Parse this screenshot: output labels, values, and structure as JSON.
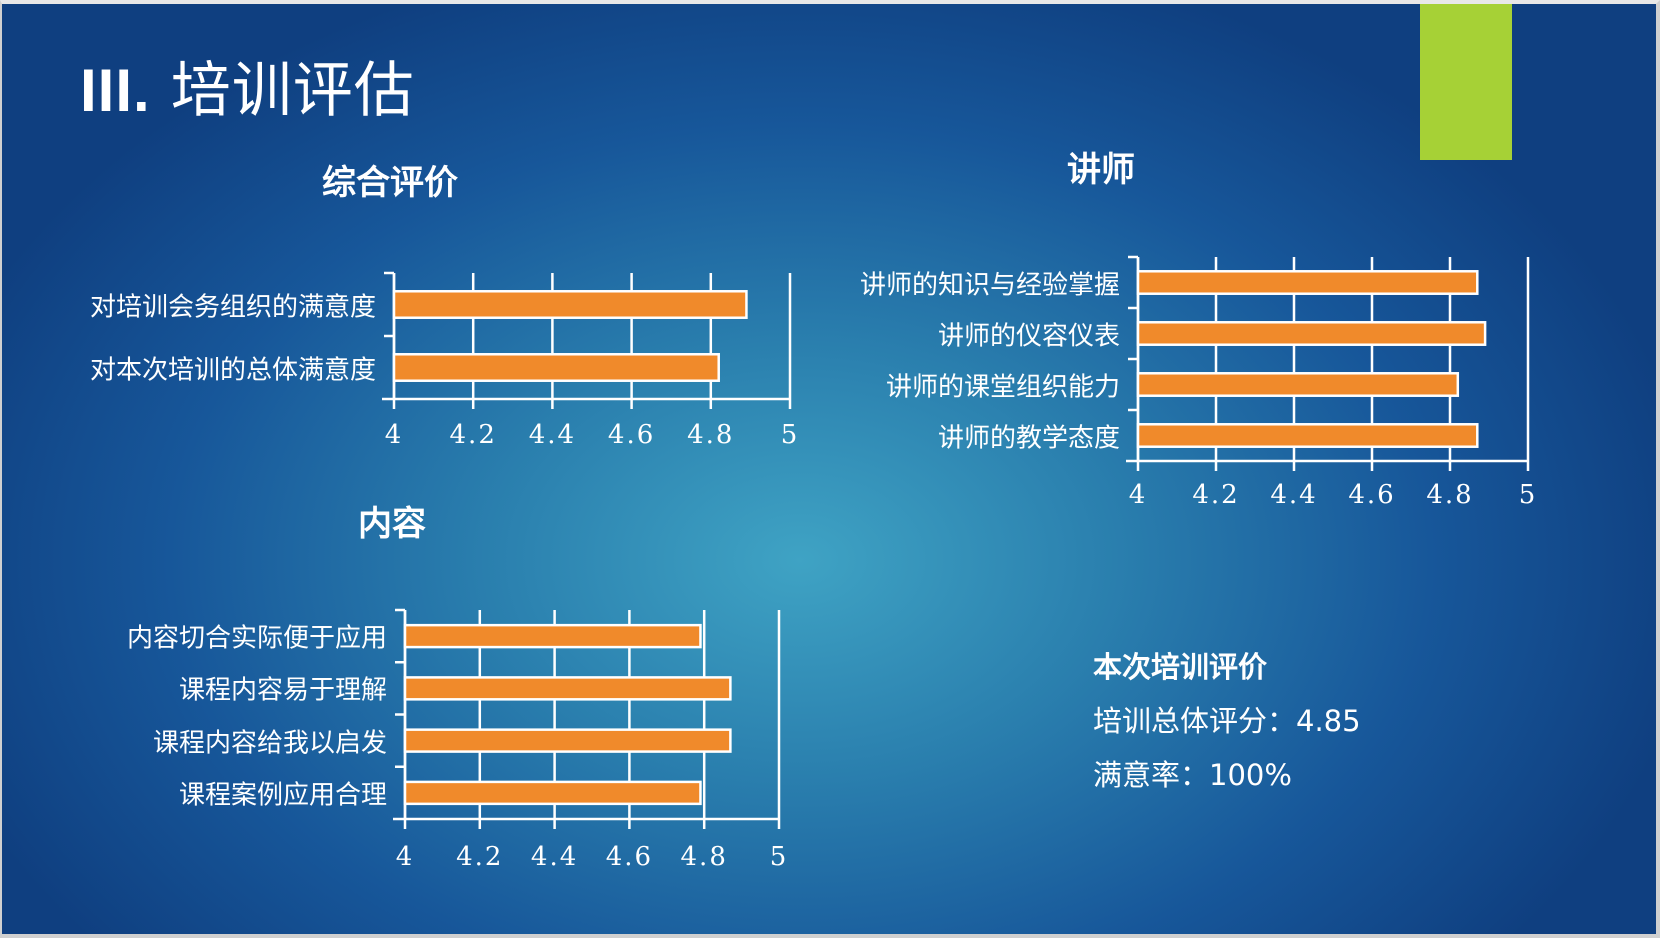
{
  "slide": {
    "title_roman": "III.",
    "title_text": "培训评估",
    "accent_color": "#a6d136"
  },
  "chart_data": [
    {
      "type": "bar",
      "orientation": "horizontal",
      "title": "综合评价",
      "categories": [
        "对培训会务组织的满意度",
        "对本次培训的总体满意度"
      ],
      "values": [
        4.89,
        4.82
      ],
      "xlim": [
        4,
        5
      ],
      "xticks": [
        "4",
        "4.2",
        "4.4",
        "4.6",
        "4.8",
        "5"
      ],
      "grid": true,
      "bar_color": "#f08a2b"
    },
    {
      "type": "bar",
      "orientation": "horizontal",
      "title": "讲师",
      "categories": [
        "讲师的知识与经验掌握",
        "讲师的仪容仪表",
        "讲师的课堂组织能力",
        "讲师的教学态度"
      ],
      "values": [
        4.87,
        4.89,
        4.82,
        4.87
      ],
      "xlim": [
        4,
        5
      ],
      "xticks": [
        "4",
        "4.2",
        "4.4",
        "4.6",
        "4.8",
        "5"
      ],
      "grid": true,
      "bar_color": "#f08a2b"
    },
    {
      "type": "bar",
      "orientation": "horizontal",
      "title": "内容",
      "categories": [
        "内容切合实际便于应用",
        "课程内容易于理解",
        "课程内容给我以启发",
        "课程案例应用合理"
      ],
      "values": [
        4.79,
        4.87,
        4.87,
        4.79
      ],
      "xlim": [
        4,
        5
      ],
      "xticks": [
        "4",
        "4.2",
        "4.4",
        "4.6",
        "4.8",
        "5"
      ],
      "grid": true,
      "bar_color": "#f08a2b"
    }
  ],
  "summary": {
    "heading": "本次培训评价",
    "overall_score": "培训总体评分：4.85",
    "satisfaction": "满意率：100%"
  }
}
